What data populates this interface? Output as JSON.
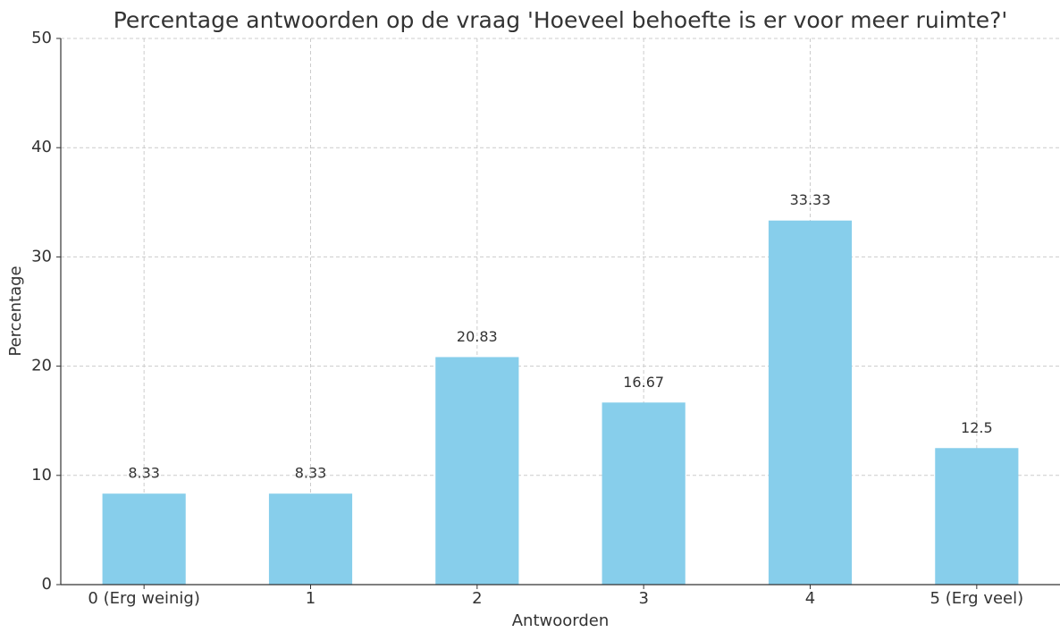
{
  "chart_data": {
    "type": "bar",
    "title": "Percentage antwoorden op de vraag 'Hoeveel behoefte is er voor meer ruimte?'",
    "xlabel": "Antwoorden",
    "ylabel": "Percentage",
    "categories": [
      "0 (Erg weinig)",
      "1",
      "2",
      "3",
      "4",
      "5 (Erg veel)"
    ],
    "values": [
      8.33,
      8.33,
      20.83,
      16.67,
      33.33,
      12.5
    ],
    "color": "#87ceeb",
    "ylim": [
      0,
      50
    ],
    "yticks": [
      0,
      10,
      20,
      30,
      40,
      50
    ],
    "grid": true
  }
}
